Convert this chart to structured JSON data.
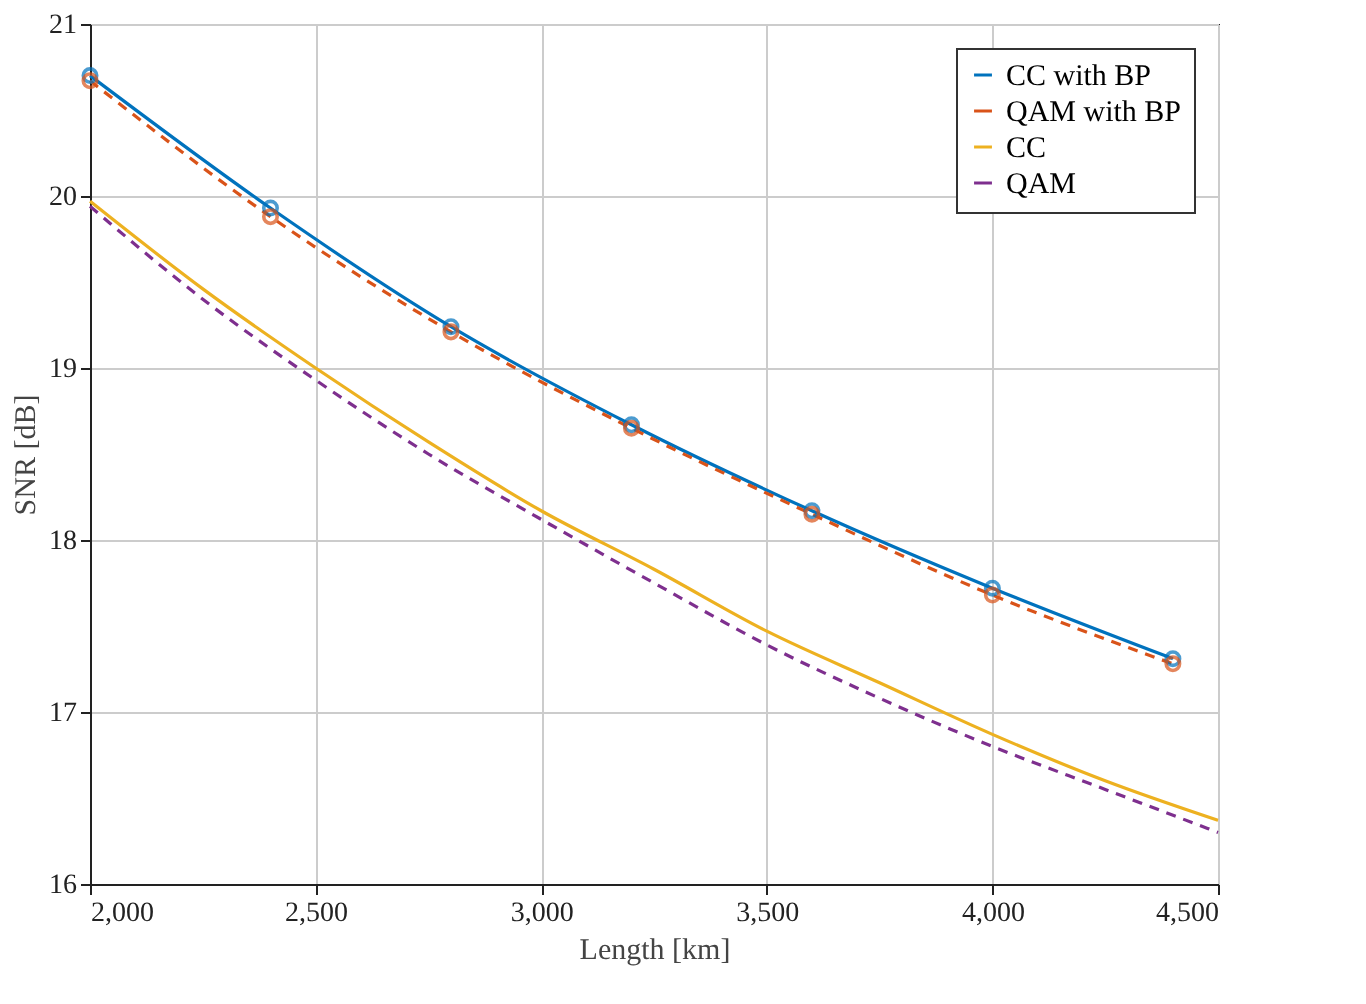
{
  "chart_data": {
    "type": "line",
    "xlabel": "Length [km]",
    "ylabel": "SNR [dB]",
    "xlim": [
      2000,
      4500
    ],
    "xticks": [
      {
        "value": 2000,
        "label": "2,000"
      },
      {
        "value": 2500,
        "label": "2,500"
      },
      {
        "value": 3000,
        "label": "3,000"
      },
      {
        "value": 3500,
        "label": "3,500"
      },
      {
        "value": 4000,
        "label": "4,000"
      },
      {
        "value": 4500,
        "label": "4,500"
      }
    ],
    "ylim": [
      16,
      21
    ],
    "yticks": [
      16,
      17,
      18,
      19,
      20,
      21
    ],
    "grid": true,
    "legend": "top right",
    "series": [
      {
        "name": "CC with BP",
        "color": "#0072bd",
        "marker": "circle",
        "line_style": "solid",
        "x": [
          2000,
          2400,
          2800,
          3200,
          3600,
          4000,
          4400
        ],
        "values": [
          20.7,
          19.93,
          19.24,
          18.67,
          18.17,
          17.72,
          17.31
        ]
      },
      {
        "name": "QAM with BP",
        "color": "#d95319",
        "marker": "circle",
        "line_style": "dashed",
        "x": [
          2000,
          2400,
          2800,
          3200,
          3600,
          4000,
          4400
        ],
        "values": [
          20.67,
          19.88,
          19.21,
          18.65,
          18.15,
          17.68,
          17.28
        ]
      },
      {
        "name": "CC",
        "color": "#edb120",
        "marker": "none",
        "line_style": "solid",
        "x": [
          2000,
          2250,
          2500,
          2750,
          3000,
          3250,
          3500,
          3750,
          4000,
          4250,
          4500
        ],
        "values": [
          19.97,
          19.46,
          19.0,
          18.57,
          18.17,
          17.83,
          17.47,
          17.17,
          16.87,
          16.6,
          16.37
        ]
      },
      {
        "name": "QAM",
        "color": "#7e2f8e",
        "marker": "none",
        "line_style": "dashed",
        "x": [
          2000,
          2250,
          2500,
          2750,
          3000,
          3250,
          3500,
          3750,
          4000,
          4250,
          4500
        ],
        "values": [
          19.94,
          19.4,
          18.93,
          18.5,
          18.12,
          17.75,
          17.39,
          17.08,
          16.8,
          16.55,
          16.3
        ]
      }
    ]
  }
}
